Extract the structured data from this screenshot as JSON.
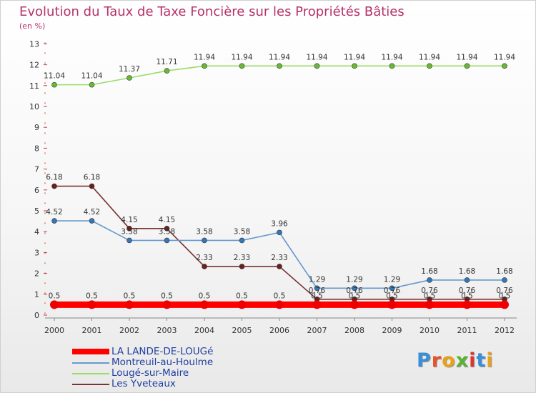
{
  "title": "Evolution du Taux de Taxe Foncière sur les Propriétés Bâties",
  "unit_label": "(en %)",
  "chart_data": {
    "type": "line",
    "title": "Evolution du Taux de Taxe Foncière sur les Propriétés Bâties",
    "ylabel": "(en %)",
    "xlabel": "",
    "ylim": [
      0,
      13
    ],
    "yticks": [
      0,
      1,
      2,
      3,
      4,
      5,
      6,
      7,
      8,
      9,
      10,
      11,
      12,
      13
    ],
    "grid": false,
    "legend_position": "bottom-left",
    "x": [
      "2000",
      "2001",
      "2002",
      "2003",
      "2004",
      "2005",
      "2006",
      "2007",
      "2008",
      "2009",
      "2010",
      "2011",
      "2012"
    ],
    "series": [
      {
        "name": "Lougé-sur-Maire",
        "color": "#99dd66",
        "marker": "#66bb33",
        "values": [
          11.04,
          11.04,
          11.37,
          11.71,
          11.94,
          11.94,
          11.94,
          11.94,
          11.94,
          11.94,
          11.94,
          11.94,
          11.94
        ],
        "labels": [
          "11.04",
          "11.04",
          "11.37",
          "11.71",
          "11.94",
          "11.94",
          "11.94",
          "11.94",
          "11.94",
          "11.94",
          "11.94",
          "11.94",
          "11.94"
        ]
      },
      {
        "name": "Les Yveteaux",
        "color": "#7a3333",
        "marker": "#6b1f1f",
        "values": [
          6.18,
          6.18,
          4.15,
          4.15,
          2.33,
          2.33,
          2.33,
          0.76,
          0.76,
          0.76,
          0.76,
          0.76,
          0.76
        ],
        "labels": [
          "6.18",
          "6.18",
          "4.15",
          "4.15",
          "2.33",
          "2.33",
          "2.33",
          "0.76",
          "0.76",
          "0.76",
          "0.76",
          "0.76",
          "0.76"
        ]
      },
      {
        "name": "Montreuil-au-Houlme",
        "color": "#6699cc",
        "marker": "#3377bb",
        "values": [
          4.52,
          4.52,
          3.58,
          3.58,
          3.58,
          3.58,
          3.96,
          1.29,
          1.29,
          1.29,
          1.68,
          1.68,
          1.68
        ],
        "labels": [
          "4.52",
          "4.52",
          "3.58",
          "3.58",
          "3.58",
          "3.58",
          "3.96",
          "1.29",
          "1.29",
          "1.29",
          "1.68",
          "1.68",
          "1.68"
        ]
      },
      {
        "name": "LA LANDE-DE-LOUGé",
        "color": "#ff0000",
        "marker": "#ee0000",
        "values": [
          0.5,
          0.5,
          0.5,
          0.5,
          0.5,
          0.5,
          0.5,
          0.5,
          0.5,
          0.5,
          0.5,
          0.5,
          0.5
        ],
        "labels": [
          "0.5",
          "0.5",
          "0.5",
          "0.5",
          "0.5",
          "0.5",
          "0.5",
          "0.5",
          "0.5",
          "0.5",
          "0.5",
          "0.5",
          "0.5"
        ]
      }
    ]
  },
  "legend": [
    {
      "label": "LA LANDE-DE-LOUGé",
      "color": "#ff0000",
      "thick": true
    },
    {
      "label": "Montreuil-au-Houlme",
      "color": "#6699cc",
      "thick": false
    },
    {
      "label": "Lougé-sur-Maire",
      "color": "#99dd66",
      "thick": false
    },
    {
      "label": "Les Yveteaux",
      "color": "#7a3333",
      "thick": false
    }
  ],
  "logo": {
    "text": "Proxiti",
    "letter_colors": [
      "#3a8fd6",
      "#e8532b",
      "#e8a21a",
      "#58b331",
      "#d9382f",
      "#3a8fd6",
      "#e8a21a"
    ]
  }
}
